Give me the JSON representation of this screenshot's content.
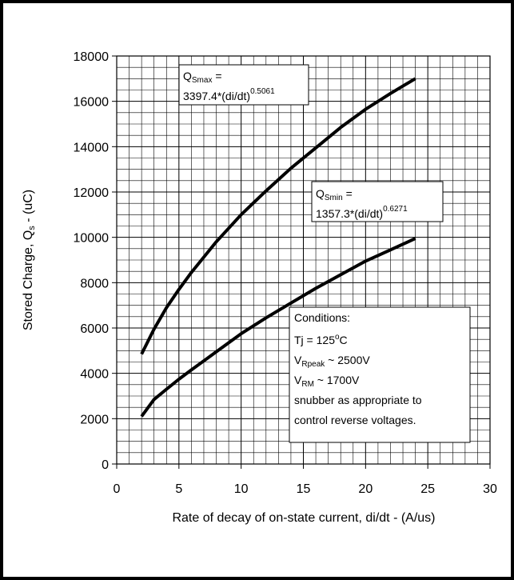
{
  "chart_data": {
    "type": "line",
    "xlabel": "Rate of decay of on-state current, di/dt - (A/us)",
    "ylabel": "Stored Charge, Q",
    "ylabel_sub": "s",
    "ylabel_suffix": " - (uC)",
    "xlim": [
      0,
      30
    ],
    "ylim": [
      0,
      18000
    ],
    "xticks": [
      "0",
      "5",
      "10",
      "15",
      "20",
      "25",
      "30"
    ],
    "yticks": [
      "0",
      "2000",
      "4000",
      "6000",
      "8000",
      "10000",
      "12000",
      "14000",
      "16000",
      "18000"
    ],
    "grid": true,
    "series": [
      {
        "x": [
          2,
          3,
          4,
          5,
          6,
          8,
          10,
          12,
          14,
          16,
          18,
          20,
          22,
          24
        ],
        "values": [
          4850,
          5950,
          6900,
          7700,
          8450,
          9800,
          11000,
          12050,
          13050,
          13950,
          14850,
          15650,
          16350,
          17000
        ]
      },
      {
        "x": [
          2,
          3,
          4,
          5,
          6,
          8,
          10,
          12,
          14,
          16,
          18,
          20,
          22,
          24
        ],
        "values": [
          2100,
          2850,
          3300,
          3740,
          4150,
          4950,
          5750,
          6450,
          7100,
          7750,
          8350,
          8950,
          9450,
          9950
        ]
      }
    ],
    "annotations": {
      "qsmax": {
        "q": "Q",
        "sub": "Smax",
        "eq": " =",
        "line2": "3397.4*(di/dt)",
        "exp": "0.5061"
      },
      "qsmin": {
        "q": "Q",
        "sub": "Smin",
        "eq": " =",
        "line2": "1357.3*(di/dt)",
        "exp": "0.6271"
      },
      "conditions": {
        "title": "Conditions:",
        "tj": "Tj = 125",
        "tj_sup": "o",
        "tj_unit": "C",
        "vrpeak": "V",
        "vrpeak_sub": "Rpeak",
        "vrpeak_val": " ~ 2500V",
        "vrm": "V",
        "vrm_sub": "RM",
        "vrm_val": " ~ 1700V",
        "line4": "snubber as appropriate to",
        "line5": "control reverse voltages."
      }
    }
  }
}
